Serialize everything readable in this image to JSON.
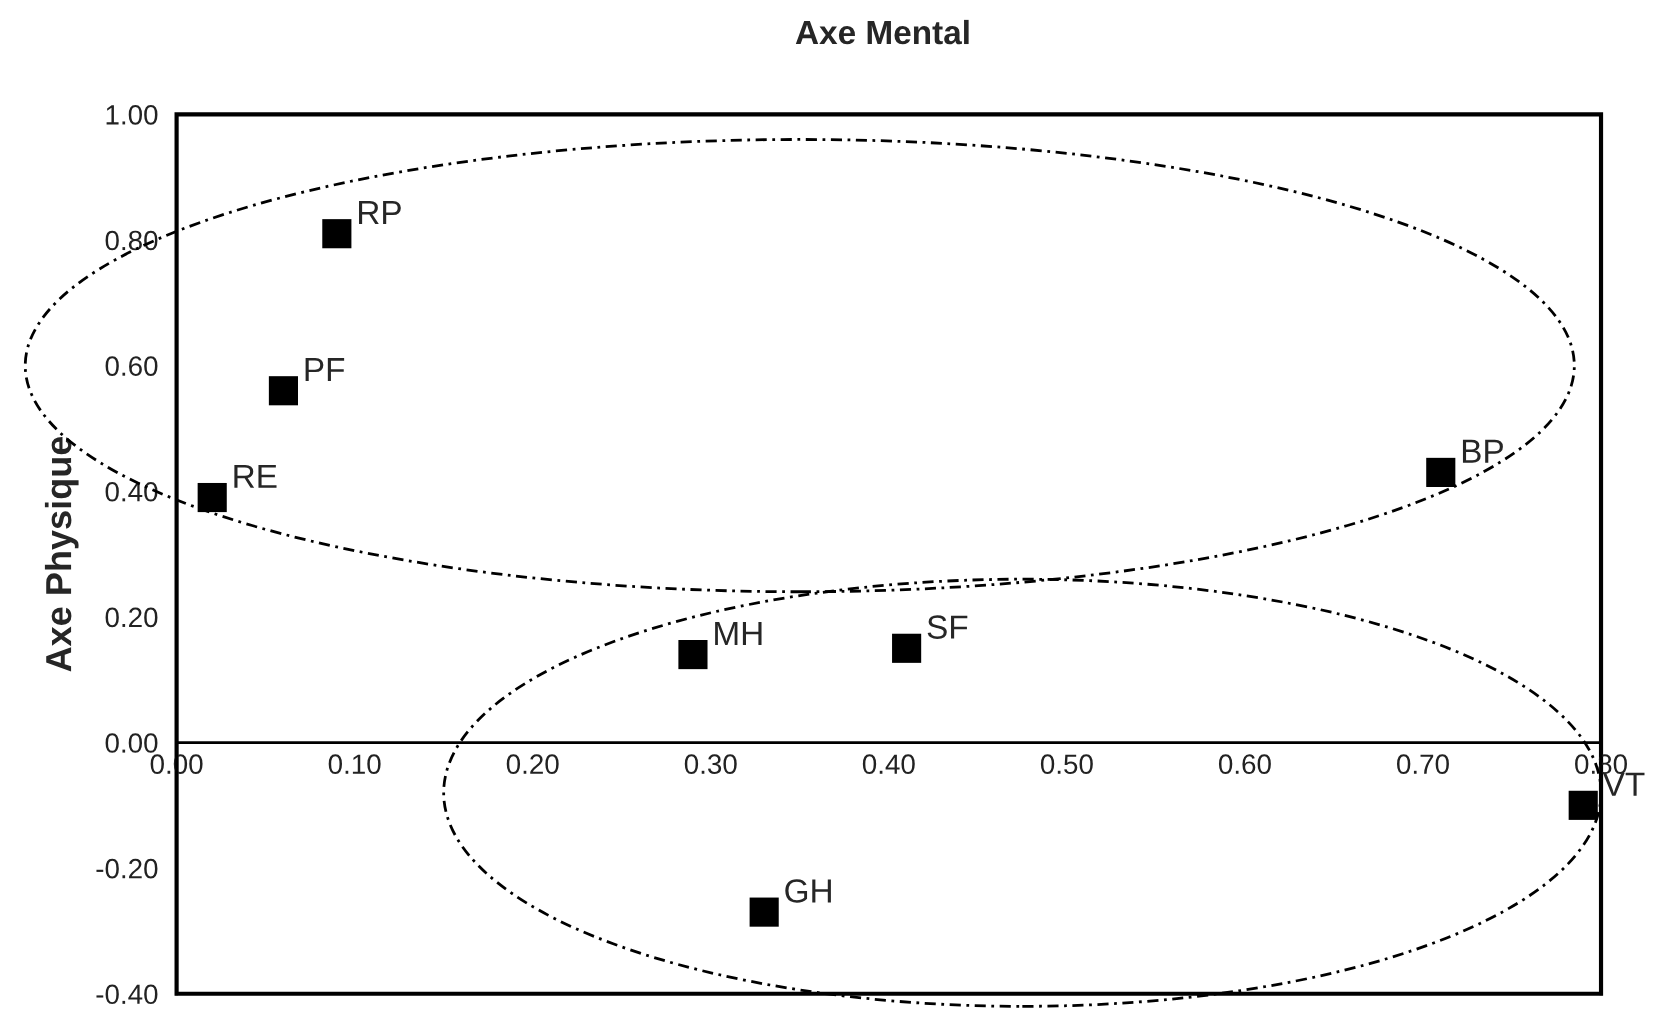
{
  "chart_data": {
    "type": "scatter",
    "title": "Axe Mental",
    "ylabel": "Axe Physique",
    "series": [
      {
        "color": "#000000",
        "x": [
          0.09,
          0.06,
          0.02,
          0.29,
          0.41,
          0.71,
          0.79,
          0.33
        ],
        "values": [
          0.81,
          0.56,
          0.39,
          0.14,
          0.15,
          0.43,
          -0.1,
          -0.27
        ]
      }
    ],
    "annotations": [
      {
        "text": "RP",
        "x": 0.09,
        "y": 0.81
      },
      {
        "text": "PF",
        "x": 0.06,
        "y": 0.56
      },
      {
        "text": "RE",
        "x": 0.02,
        "y": 0.39
      },
      {
        "text": "MH",
        "x": 0.29,
        "y": 0.14
      },
      {
        "text": "SF",
        "x": 0.41,
        "y": 0.15
      },
      {
        "text": "BP",
        "x": 0.71,
        "y": 0.43
      },
      {
        "text": "VT",
        "x": 0.79,
        "y": -0.1
      },
      {
        "text": "GH",
        "x": 0.33,
        "y": -0.27
      }
    ],
    "xlim": [
      0,
      0.8
    ],
    "ylim": [
      -0.4,
      1.0
    ],
    "xticks": [
      {
        "value": 0,
        "label": "0.00"
      },
      {
        "value": 0.1,
        "label": "0.10"
      },
      {
        "value": 0.2,
        "label": "0.20"
      },
      {
        "value": 0.3,
        "label": "0.30"
      },
      {
        "value": 0.4,
        "label": "0.40"
      },
      {
        "value": 0.5,
        "label": "0.50"
      },
      {
        "value": 0.6,
        "label": "0.60"
      },
      {
        "value": 0.7,
        "label": "0.70"
      },
      {
        "value": 0.8,
        "label": "0.80"
      }
    ],
    "yticks": [
      {
        "value": -0.4,
        "label": "-0.40"
      },
      {
        "value": -0.2,
        "label": "-0.20"
      },
      {
        "value": 0,
        "label": "0.00"
      },
      {
        "value": 0.2,
        "label": "0.20"
      },
      {
        "value": 0.4,
        "label": "0.40"
      },
      {
        "value": 0.6,
        "label": "0.60"
      },
      {
        "value": 0.8,
        "label": "0.80"
      },
      {
        "value": 1.0,
        "label": "1.00"
      }
    ],
    "marker": "square",
    "grid": false,
    "legend": false
  }
}
